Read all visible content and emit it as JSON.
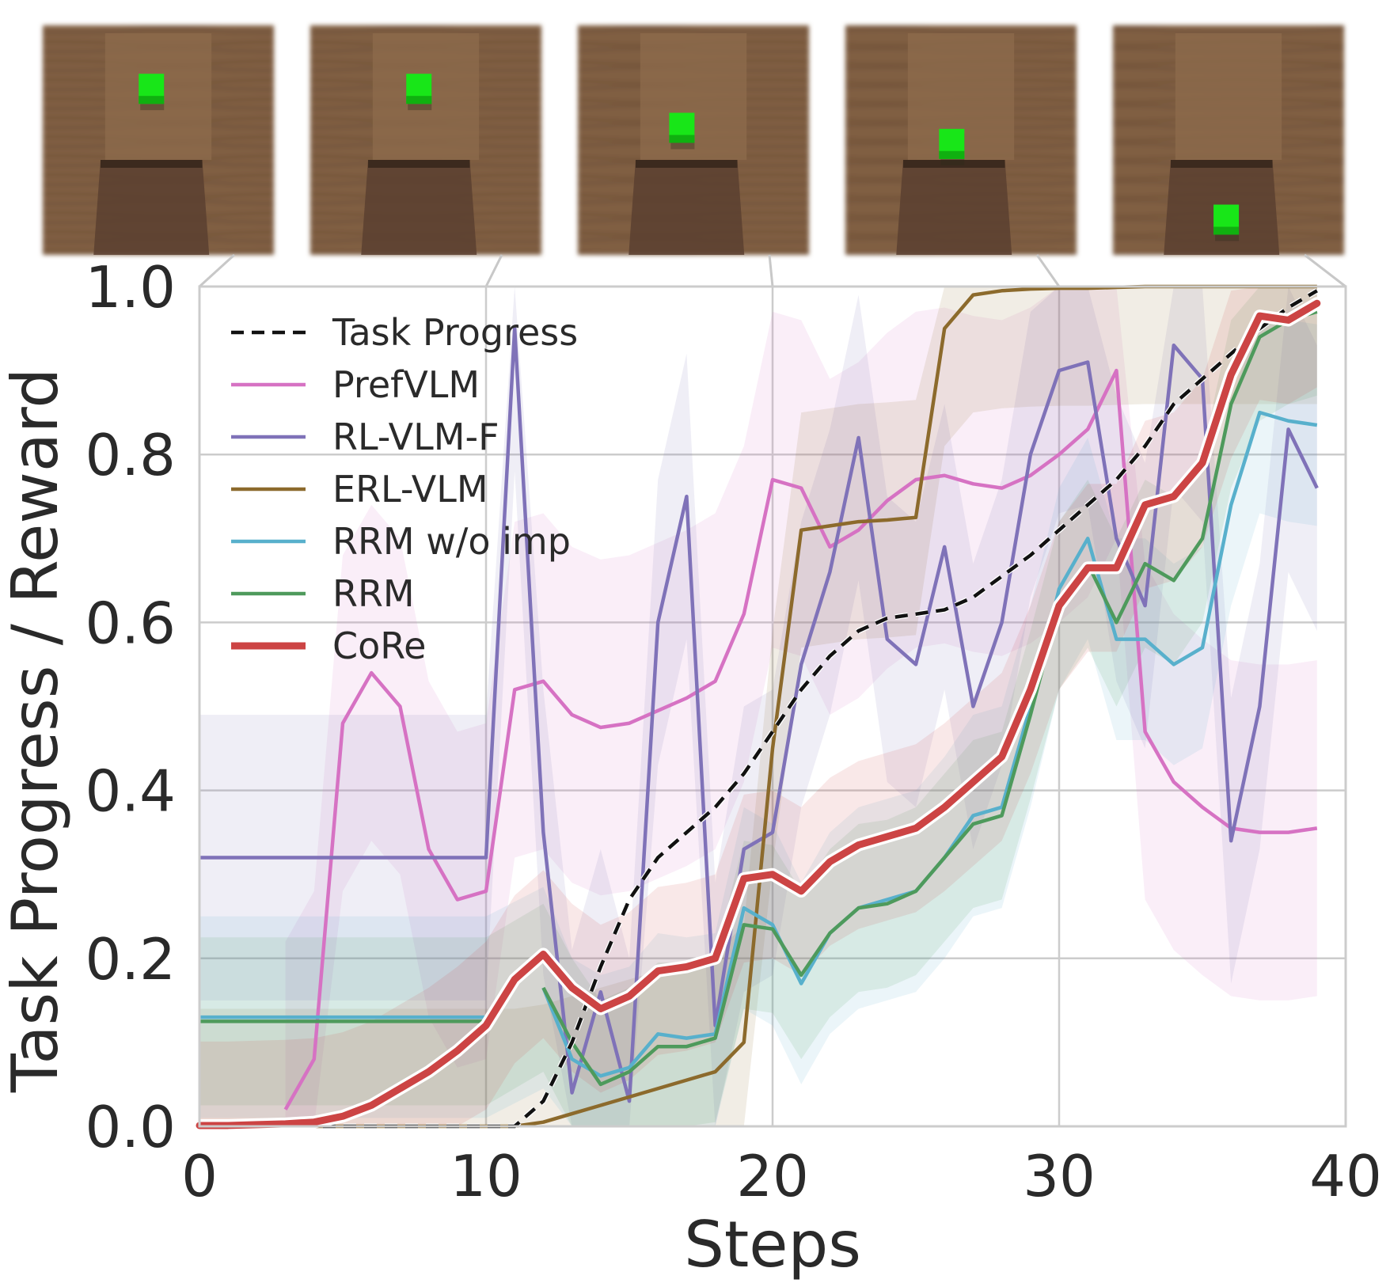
{
  "colors": {
    "task_progress": "#111111",
    "prefvlm": "#d672c3",
    "rl_vlm_f": "#7f72b8",
    "erl_vlm": "#8c6a2c",
    "rrm_wo_imp": "#58b0cc",
    "rrm": "#4e9a5c",
    "core": "#cc4444",
    "grid": "#cccccc",
    "wood": "#7b5a3f",
    "cube": "#18e618"
  },
  "thumbnails": [
    {
      "label": "frame-step-0",
      "cube": "far"
    },
    {
      "label": "frame-step-10",
      "cube": "far"
    },
    {
      "label": "frame-step-20",
      "cube": "middle"
    },
    {
      "label": "frame-step-30",
      "cube": "near"
    },
    {
      "label": "frame-step-40",
      "cube": "inside"
    }
  ],
  "chart_data": {
    "type": "line",
    "xlabel": "Steps",
    "ylabel": "Task Progress / Reward",
    "xlim": [
      0,
      40
    ],
    "ylim": [
      0,
      1
    ],
    "xticks": [
      0,
      10,
      20,
      30,
      40
    ],
    "yticks": [
      0.0,
      0.2,
      0.4,
      0.6,
      0.8,
      1.0
    ],
    "x_tick_labels": [
      "0",
      "10",
      "20",
      "30",
      "40"
    ],
    "y_tick_labels": [
      "0.0",
      "0.2",
      "0.4",
      "0.6",
      "0.8",
      "1.0"
    ],
    "grid": true,
    "legend_position": "top-left",
    "x": [
      0,
      1,
      2,
      3,
      4,
      5,
      6,
      7,
      8,
      9,
      10,
      11,
      12,
      13,
      14,
      15,
      16,
      17,
      18,
      19,
      20,
      21,
      22,
      23,
      24,
      25,
      26,
      27,
      28,
      29,
      30,
      31,
      32,
      33,
      34,
      35,
      36,
      37,
      38,
      39
    ],
    "series": [
      {
        "key": "task_progress",
        "name": "Task Progress",
        "style": "dashed",
        "values": [
          0,
          0,
          0,
          0,
          0,
          0,
          0,
          0,
          0,
          0,
          0,
          0,
          0.03,
          0.1,
          0.19,
          0.27,
          0.32,
          0.35,
          0.38,
          0.42,
          0.47,
          0.52,
          0.56,
          0.59,
          0.605,
          0.61,
          0.615,
          0.63,
          0.655,
          0.68,
          0.71,
          0.74,
          0.77,
          0.81,
          0.86,
          0.89,
          0.92,
          0.95,
          0.975,
          0.995
        ],
        "band": null
      },
      {
        "key": "prefvlm",
        "name": "PrefVLM",
        "style": "solid",
        "values": [
          null,
          null,
          null,
          0.02,
          0.08,
          0.48,
          0.54,
          0.5,
          0.33,
          0.27,
          0.28,
          0.52,
          0.53,
          0.49,
          0.475,
          0.48,
          0.495,
          0.51,
          0.53,
          0.61,
          0.77,
          0.76,
          0.69,
          0.71,
          0.745,
          0.77,
          0.775,
          0.765,
          0.76,
          0.775,
          0.8,
          0.83,
          0.9,
          0.47,
          0.41,
          0.38,
          0.355,
          0.35,
          0.35,
          0.355
        ],
        "band": {
          "lower_offset": 0.2,
          "upper_offset": 0.2
        }
      },
      {
        "key": "rl_vlm_f",
        "name": "RL-VLM-F",
        "style": "solid",
        "values": [
          0.32,
          0.32,
          0.32,
          0.32,
          0.32,
          0.32,
          0.32,
          0.32,
          0.32,
          0.32,
          0.32,
          0.95,
          0.35,
          0.04,
          0.16,
          0.03,
          0.6,
          0.75,
          0.12,
          0.33,
          0.35,
          0.55,
          0.66,
          0.82,
          0.58,
          0.55,
          0.69,
          0.5,
          0.6,
          0.8,
          0.9,
          0.91,
          0.7,
          0.62,
          0.93,
          0.89,
          0.34,
          0.5,
          0.83,
          0.76
        ],
        "band": {
          "lower_offset": 0.17,
          "upper_offset": 0.17
        }
      },
      {
        "key": "erl_vlm",
        "name": "ERL-VLM",
        "style": "solid",
        "values": [
          0,
          0,
          0,
          0,
          0,
          0,
          0,
          0,
          0,
          0,
          0,
          0,
          0.005,
          0.015,
          0.025,
          0.035,
          0.045,
          0.055,
          0.065,
          0.1,
          0.45,
          0.71,
          0.715,
          0.72,
          0.722,
          0.725,
          0.95,
          0.99,
          0.995,
          0.997,
          0.998,
          0.998,
          0.999,
          1,
          1,
          1,
          1,
          1,
          1,
          1
        ],
        "band": {
          "lower_offset": 0.14,
          "upper_offset": 0.14
        }
      },
      {
        "key": "rrm_wo_imp",
        "name": "RRM w/o imp",
        "style": "solid",
        "values": [
          0.13,
          0.13,
          0.13,
          0.13,
          0.13,
          0.13,
          0.13,
          0.13,
          0.13,
          0.13,
          0.13,
          null,
          0.165,
          0.08,
          0.06,
          0.07,
          0.11,
          0.105,
          0.11,
          0.26,
          0.24,
          0.17,
          0.23,
          0.26,
          0.27,
          0.28,
          0.32,
          0.37,
          0.38,
          0.5,
          0.64,
          0.7,
          0.58,
          0.58,
          0.55,
          0.57,
          0.74,
          0.85,
          0.84,
          0.835
        ],
        "band": {
          "lower_offset": 0.12,
          "upper_offset": 0.12
        }
      },
      {
        "key": "rrm",
        "name": "RRM",
        "style": "solid",
        "values": [
          0.125,
          0.125,
          0.125,
          0.125,
          0.125,
          0.125,
          0.125,
          0.125,
          0.125,
          0.125,
          0.125,
          null,
          0.165,
          0.1,
          0.05,
          0.065,
          0.095,
          0.095,
          0.105,
          0.24,
          0.235,
          0.18,
          0.23,
          0.26,
          0.265,
          0.28,
          0.32,
          0.36,
          0.37,
          0.49,
          0.62,
          0.67,
          0.6,
          0.67,
          0.65,
          0.7,
          0.86,
          0.94,
          0.96,
          0.97
        ],
        "band": {
          "lower_offset": 0.1,
          "upper_offset": 0.1
        }
      },
      {
        "key": "core",
        "name": "CoRe",
        "style": "bold",
        "values": [
          0.001,
          0.001,
          0.002,
          0.003,
          0.005,
          0.012,
          0.025,
          0.045,
          0.065,
          0.09,
          0.12,
          0.175,
          0.205,
          0.165,
          0.14,
          0.155,
          0.185,
          0.19,
          0.2,
          0.295,
          0.3,
          0.28,
          0.315,
          0.335,
          0.345,
          0.355,
          0.38,
          0.41,
          0.44,
          0.52,
          0.62,
          0.665,
          0.665,
          0.74,
          0.75,
          0.79,
          0.895,
          0.965,
          0.96,
          0.98
        ],
        "band": {
          "lower_offset": 0.1,
          "upper_offset": 0.1
        }
      }
    ]
  }
}
